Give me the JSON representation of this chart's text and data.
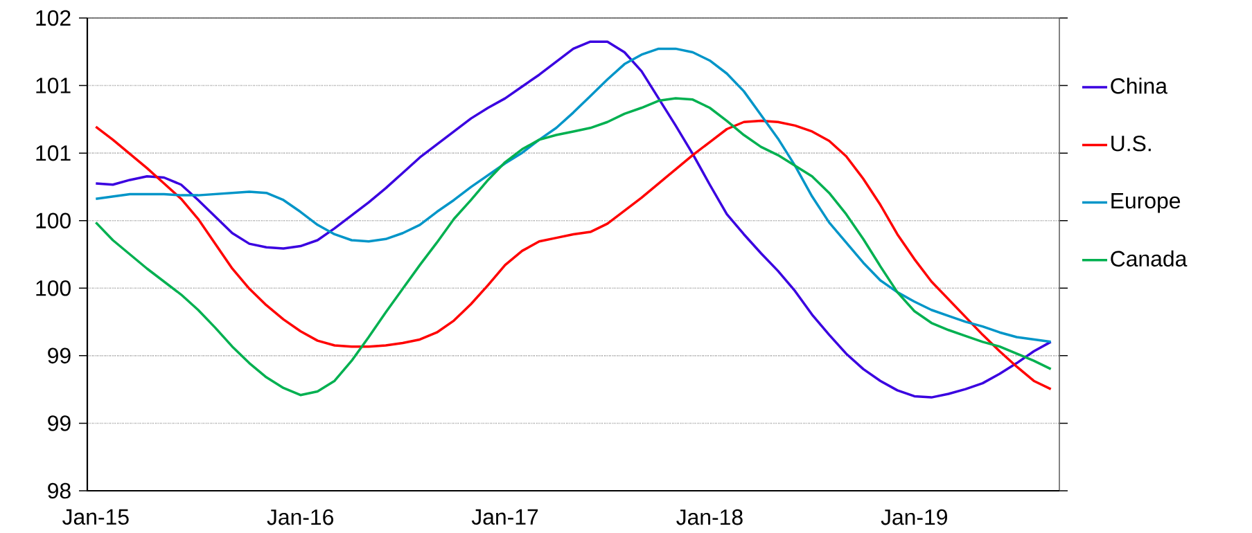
{
  "chart_data": {
    "type": "line",
    "categories": [
      "Jan-15",
      null,
      null,
      null,
      null,
      null,
      null,
      null,
      null,
      null,
      null,
      null,
      "Jan-16",
      null,
      null,
      null,
      null,
      null,
      null,
      null,
      null,
      null,
      null,
      null,
      "Jan-17",
      null,
      null,
      null,
      null,
      null,
      null,
      null,
      null,
      null,
      null,
      null,
      "Jan-18",
      null,
      null,
      null,
      null,
      null,
      null,
      null,
      null,
      null,
      null,
      null,
      "Jan-19",
      null,
      null,
      null,
      null,
      null,
      null,
      null,
      null
    ],
    "series": [
      {
        "name": "China",
        "color": "#3a00e0",
        "values": [
          100.6,
          100.59,
          100.63,
          100.66,
          100.65,
          100.59,
          100.46,
          100.32,
          100.18,
          100.09,
          100.06,
          100.05,
          100.07,
          100.12,
          100.22,
          100.33,
          100.44,
          100.56,
          100.69,
          100.82,
          100.93,
          101.04,
          101.15,
          101.24,
          101.32,
          101.42,
          101.52,
          101.63,
          101.74,
          101.8,
          101.8,
          101.71,
          101.55,
          101.32,
          101.09,
          100.85,
          100.59,
          100.34,
          100.17,
          100.01,
          99.86,
          99.69,
          99.49,
          99.32,
          99.16,
          99.03,
          98.93,
          98.85,
          98.8,
          98.79,
          98.82,
          98.86,
          98.91,
          98.99,
          99.08,
          99.18,
          99.26
        ]
      },
      {
        "name": "U.S.",
        "color": "#ff0000",
        "values": [
          101.08,
          100.97,
          100.85,
          100.73,
          100.6,
          100.47,
          100.3,
          100.09,
          99.88,
          99.71,
          99.57,
          99.45,
          99.35,
          99.27,
          99.23,
          99.22,
          99.22,
          99.23,
          99.25,
          99.28,
          99.34,
          99.44,
          99.58,
          99.74,
          99.91,
          100.03,
          100.11,
          100.14,
          100.17,
          100.19,
          100.26,
          100.37,
          100.48,
          100.6,
          100.72,
          100.84,
          100.95,
          101.06,
          101.12,
          101.13,
          101.12,
          101.09,
          101.04,
          100.96,
          100.83,
          100.64,
          100.42,
          100.17,
          99.96,
          99.77,
          99.62,
          99.47,
          99.32,
          99.18,
          99.05,
          98.93,
          98.86
        ]
      },
      {
        "name": "Europe",
        "color": "#0095c8",
        "values": [
          100.47,
          100.49,
          100.51,
          100.51,
          100.51,
          100.5,
          100.5,
          100.51,
          100.52,
          100.53,
          100.52,
          100.46,
          100.36,
          100.25,
          100.17,
          100.12,
          100.11,
          100.13,
          100.18,
          100.25,
          100.36,
          100.46,
          100.57,
          100.67,
          100.77,
          100.86,
          100.97,
          101.07,
          101.2,
          101.34,
          101.48,
          101.61,
          101.69,
          101.74,
          101.74,
          101.71,
          101.64,
          101.53,
          101.38,
          101.18,
          100.98,
          100.75,
          100.49,
          100.27,
          100.1,
          99.93,
          99.78,
          99.68,
          99.6,
          99.53,
          99.48,
          99.43,
          99.39,
          99.34,
          99.3,
          99.28,
          99.26
        ]
      },
      {
        "name": "Canada",
        "color": "#00b050",
        "values": [
          100.27,
          100.12,
          100.0,
          99.88,
          99.77,
          99.66,
          99.53,
          99.38,
          99.22,
          99.08,
          98.96,
          98.87,
          98.81,
          98.84,
          98.93,
          99.1,
          99.3,
          99.51,
          99.71,
          99.91,
          100.1,
          100.3,
          100.46,
          100.63,
          100.78,
          100.89,
          100.97,
          101.01,
          101.04,
          101.07,
          101.12,
          101.19,
          101.24,
          101.3,
          101.32,
          101.31,
          101.24,
          101.13,
          101.01,
          100.91,
          100.84,
          100.75,
          100.66,
          100.52,
          100.34,
          100.13,
          99.9,
          99.68,
          99.52,
          99.42,
          99.36,
          99.31,
          99.26,
          99.22,
          99.16,
          99.1,
          99.03
        ]
      }
    ],
    "ylim": [
      98,
      102
    ],
    "yticks": [
      98,
      {
        "value": 98.5714,
        "label": "99"
      },
      {
        "value": 99.1429,
        "label": "99"
      },
      {
        "value": 99.7143,
        "label": "100"
      },
      {
        "value": 100.2857,
        "label": "100"
      },
      {
        "value": 100.8571,
        "label": "101"
      },
      {
        "value": 101.4286,
        "label": "101"
      },
      102
    ],
    "grid": "y",
    "legend": "right",
    "marker": "none",
    "line_style": "solid"
  }
}
